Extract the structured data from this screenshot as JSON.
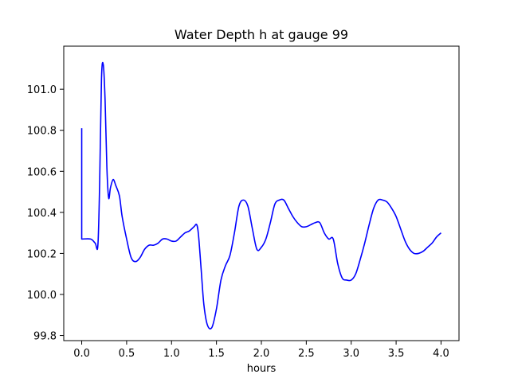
{
  "chart_data": {
    "type": "line",
    "title": "Water Depth h at gauge 99",
    "xlabel": "hours",
    "ylabel": "",
    "xlim": [
      -0.2,
      4.2
    ],
    "ylim": [
      99.775,
      101.21
    ],
    "xticks": [
      0.0,
      0.5,
      1.0,
      1.5,
      2.0,
      2.5,
      3.0,
      3.5,
      4.0
    ],
    "xtick_labels": [
      "0.0",
      "0.5",
      "1.0",
      "1.5",
      "2.0",
      "2.5",
      "3.0",
      "3.5",
      "4.0"
    ],
    "yticks": [
      99.8,
      100.0,
      100.2,
      100.4,
      100.6,
      100.8,
      101.0
    ],
    "ytick_labels": [
      "99.8",
      "100.0",
      "100.2",
      "100.4",
      "100.6",
      "100.8",
      "101.0"
    ],
    "grid": false,
    "legend": "none",
    "series": [
      {
        "color": "#0000ff",
        "x": [
          0.0,
          0.0,
          0.1,
          0.15,
          0.18,
          0.2,
          0.22,
          0.24,
          0.26,
          0.28,
          0.3,
          0.32,
          0.35,
          0.38,
          0.42,
          0.45,
          0.5,
          0.55,
          0.6,
          0.65,
          0.7,
          0.75,
          0.8,
          0.85,
          0.9,
          0.95,
          1.0,
          1.05,
          1.1,
          1.15,
          1.2,
          1.25,
          1.28,
          1.3,
          1.33,
          1.36,
          1.4,
          1.45,
          1.5,
          1.55,
          1.6,
          1.65,
          1.7,
          1.75,
          1.8,
          1.85,
          1.9,
          1.95,
          2.0,
          2.05,
          2.1,
          2.15,
          2.2,
          2.25,
          2.3,
          2.35,
          2.4,
          2.45,
          2.5,
          2.55,
          2.6,
          2.65,
          2.7,
          2.75,
          2.8,
          2.85,
          2.9,
          2.95,
          3.0,
          3.05,
          3.1,
          3.15,
          3.2,
          3.25,
          3.3,
          3.35,
          3.4,
          3.45,
          3.5,
          3.55,
          3.6,
          3.65,
          3.7,
          3.75,
          3.8,
          3.85,
          3.9,
          3.95,
          4.0
        ],
        "values": [
          100.81,
          100.27,
          100.27,
          100.25,
          100.24,
          100.55,
          101.05,
          101.12,
          100.95,
          100.62,
          100.47,
          100.52,
          100.56,
          100.53,
          100.48,
          100.38,
          100.27,
          100.18,
          100.16,
          100.18,
          100.22,
          100.24,
          100.24,
          100.25,
          100.27,
          100.27,
          100.26,
          100.26,
          100.28,
          100.3,
          100.31,
          100.33,
          100.34,
          100.29,
          100.12,
          99.95,
          99.85,
          99.84,
          99.93,
          100.07,
          100.14,
          100.19,
          100.3,
          100.43,
          100.46,
          100.43,
          100.32,
          100.22,
          100.23,
          100.27,
          100.35,
          100.44,
          100.46,
          100.46,
          100.42,
          100.38,
          100.35,
          100.33,
          100.33,
          100.34,
          100.35,
          100.35,
          100.3,
          100.27,
          100.27,
          100.15,
          100.08,
          100.07,
          100.07,
          100.1,
          100.17,
          100.25,
          100.34,
          100.42,
          100.46,
          100.46,
          100.45,
          100.42,
          100.38,
          100.32,
          100.26,
          100.22,
          100.2,
          100.2,
          100.21,
          100.23,
          100.25,
          100.28,
          100.3
        ]
      }
    ]
  }
}
